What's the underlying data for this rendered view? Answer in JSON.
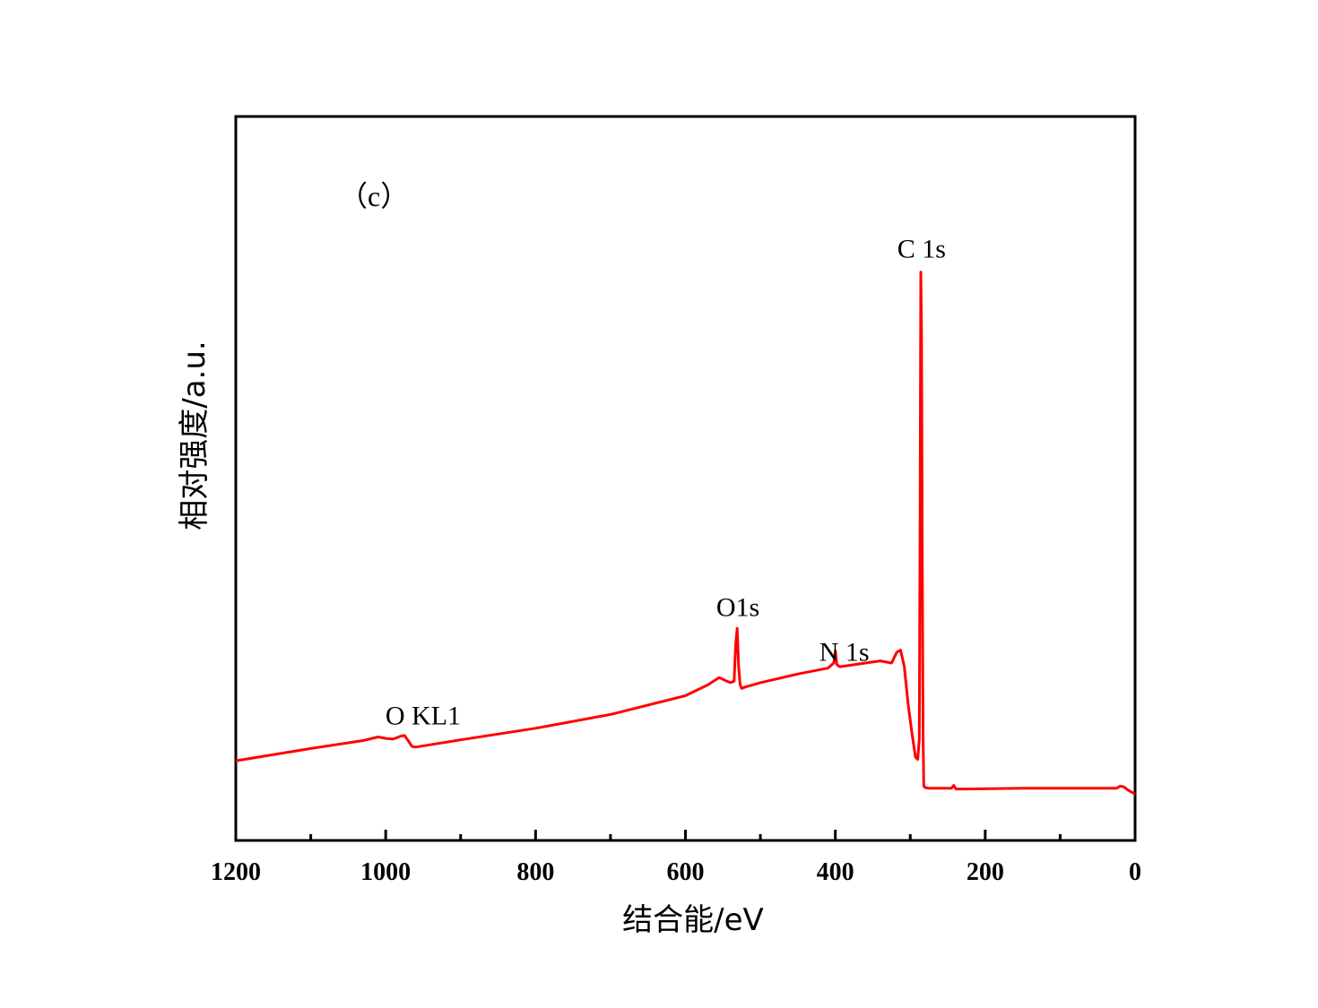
{
  "chart_data": {
    "type": "line",
    "panel_label": "（c）",
    "xlabel": "结合能/eV",
    "ylabel": "相对强度/a.u.",
    "xlim": [
      1200,
      0
    ],
    "x_reversed": true,
    "xticks": [
      1200,
      1000,
      800,
      600,
      400,
      200,
      0
    ],
    "x_minor_ticks": [
      1100,
      900,
      700,
      500,
      300,
      100
    ],
    "ylim": [
      0,
      100
    ],
    "yticks_shown": false,
    "grid": false,
    "legend": "none",
    "line_color": "#ff0000",
    "series": [
      {
        "x": [
          1200,
          1100,
          1030,
          1010,
          1000,
          990,
          980,
          975,
          970,
          965,
          960,
          900,
          800,
          700,
          600,
          570,
          555,
          545,
          540,
          535,
          533,
          531,
          529,
          527,
          525,
          520,
          500,
          450,
          410,
          402,
          400,
          398,
          394,
          360,
          340,
          325,
          318,
          313,
          308,
          303,
          298,
          293,
          290,
          288,
          287,
          286,
          285,
          284,
          283,
          282,
          280,
          275,
          260,
          245,
          242,
          239,
          230,
          150,
          50,
          25,
          20,
          15,
          10,
          5,
          0
        ],
        "y": [
          11.0,
          12.7,
          13.8,
          14.3,
          14.1,
          14.0,
          14.4,
          14.5,
          13.8,
          13.0,
          12.9,
          13.9,
          15.5,
          17.4,
          20.0,
          21.5,
          22.5,
          22.0,
          21.8,
          22.0,
          27.0,
          29.3,
          24.0,
          21.5,
          21.0,
          21.2,
          21.8,
          23.0,
          23.8,
          24.5,
          26.2,
          24.3,
          24.0,
          24.5,
          24.8,
          24.5,
          26.0,
          26.3,
          24.0,
          19.0,
          15.0,
          11.5,
          11.2,
          14.0,
          40.0,
          78.5,
          70.0,
          40.0,
          15.0,
          7.5,
          7.3,
          7.2,
          7.2,
          7.2,
          7.6,
          7.1,
          7.1,
          7.2,
          7.2,
          7.2,
          7.5,
          7.4,
          7.0,
          6.7,
          6.4
        ]
      }
    ],
    "annotations": [
      {
        "text": "C 1s",
        "x": 285,
        "y": 80.5
      },
      {
        "text": "O1s",
        "x": 530,
        "y": 31.0
      },
      {
        "text": "N 1s",
        "x": 388,
        "y": 24.8
      },
      {
        "text": "O KL1",
        "x": 950,
        "y": 16.0
      }
    ]
  }
}
